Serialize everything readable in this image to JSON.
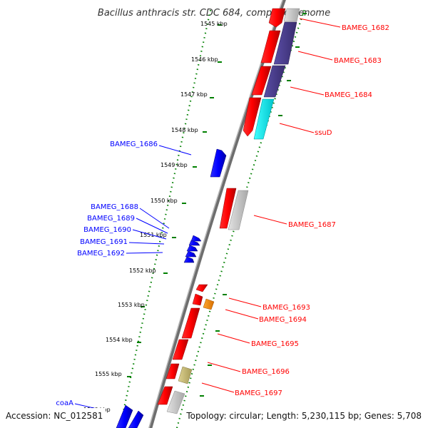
{
  "title": "Bacillus anthracis str. CDC 684, complete genome",
  "footer": {
    "accession": "Accession: NC_012581",
    "topology": "Topology: circular; Length: 5,230,115 bp; Genes: 5,708"
  },
  "ticks": [
    "1545 kbp",
    "1546 kbp",
    "1547 kbp",
    "1548 kbp",
    "1549 kbp",
    "1550 kbp",
    "1551 kbp",
    "1552 kbp",
    "1553 kbp",
    "1554 kbp",
    "1555 kbp",
    "1556 kbp"
  ],
  "genes_forward": [
    "BAMEG_1682",
    "BAMEG_1683",
    "BAMEG_1684",
    "ssuD",
    "BAMEG_1687",
    "BAMEG_1693",
    "BAMEG_1694",
    "BAMEG_1695",
    "BAMEG_1696",
    "BAMEG_1697"
  ],
  "genes_reverse": [
    "BAMEG_1686",
    "BAMEG_1688",
    "BAMEG_1689",
    "BAMEG_1690",
    "BAMEG_1691",
    "BAMEG_1692",
    "coaA"
  ],
  "colors": {
    "forward_cds": "#ff0000",
    "reverse_cds": "#0000ff",
    "cog_purple": "#4b3f8f",
    "cog_cyan": "#00e5ee",
    "cog_grey": "#c8c8c8",
    "cog_orange": "#ff8c00",
    "cog_khaki": "#c8bb78",
    "tick_green": "#008000",
    "backbone": "#777777"
  }
}
